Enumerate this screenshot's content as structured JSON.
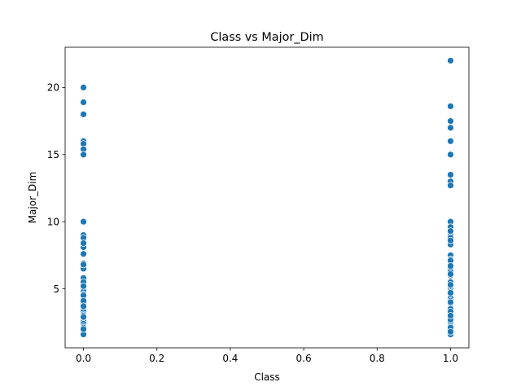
{
  "chart_data": {
    "type": "scatter",
    "title": "Class vs Major_Dim",
    "xlabel": "Class",
    "ylabel": "Major_Dim",
    "xlim": [
      -0.05,
      1.05
    ],
    "ylim": [
      0.6,
      23.0
    ],
    "xticks": [
      0.0,
      0.2,
      0.4,
      0.6,
      0.8,
      1.0
    ],
    "xtick_labels": [
      "0.0",
      "0.2",
      "0.4",
      "0.6",
      "0.8",
      "1.0"
    ],
    "yticks": [
      5,
      10,
      15,
      20
    ],
    "ytick_labels": [
      "5",
      "10",
      "15",
      "20"
    ],
    "grid": false,
    "color": "#1f77b4",
    "series": [
      {
        "x": [
          0,
          0,
          0,
          0,
          0,
          0,
          0,
          0,
          0,
          0,
          0,
          0,
          0,
          0,
          0,
          0,
          0,
          0,
          0,
          0,
          0,
          0,
          0,
          0,
          0,
          0,
          0,
          0,
          0,
          0,
          0,
          0,
          0,
          0,
          0,
          0,
          0,
          0,
          0,
          0,
          0,
          0,
          0,
          0,
          0
        ],
        "y": [
          20.0,
          18.9,
          18.0,
          16.0,
          15.8,
          15.4,
          15.0,
          10.0,
          9.0,
          8.5,
          8.3,
          8.1,
          7.6,
          6.9,
          6.7,
          6.5,
          5.8,
          5.5,
          5.0,
          4.8,
          4.6,
          4.4,
          4.2,
          4.0,
          3.9,
          3.5,
          3.3,
          3.1,
          3.0,
          2.8,
          2.6,
          2.4,
          2.2,
          2.1,
          1.9,
          1.6,
          8.8,
          8.4,
          6.8,
          5.2,
          4.5,
          4.1,
          3.7,
          2.9,
          2.0
        ]
      },
      {
        "x": [
          1,
          1,
          1,
          1,
          1,
          1,
          1,
          1,
          1,
          1,
          1,
          1,
          1,
          1,
          1,
          1,
          1,
          1,
          1,
          1,
          1,
          1,
          1,
          1,
          1,
          1,
          1,
          1,
          1,
          1,
          1,
          1,
          1,
          1,
          1,
          1,
          1,
          1,
          1,
          1,
          1,
          1,
          1,
          1,
          1,
          1,
          1,
          1
        ],
        "y": [
          22.0,
          18.6,
          17.5,
          17.0,
          16.0,
          15.0,
          13.5,
          13.0,
          12.7,
          10.0,
          9.6,
          9.0,
          8.8,
          8.3,
          7.5,
          7.2,
          7.0,
          6.8,
          6.5,
          6.3,
          6.0,
          5.5,
          5.0,
          4.8,
          4.6,
          4.3,
          4.1,
          3.9,
          3.5,
          3.1,
          2.9,
          2.5,
          2.2,
          1.9,
          1.6,
          9.3,
          8.6,
          7.1,
          6.7,
          6.1,
          5.3,
          4.7,
          4.0,
          3.3,
          2.7,
          2.1,
          1.8,
          3.0
        ]
      }
    ]
  }
}
